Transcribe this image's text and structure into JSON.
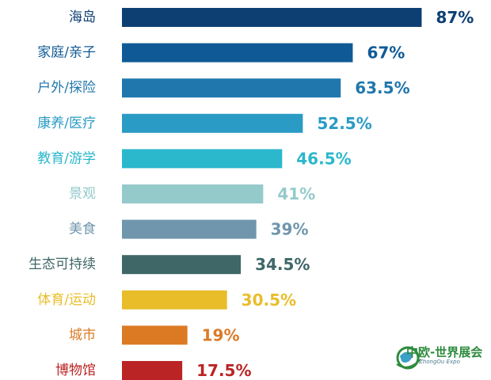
{
  "chart_data": {
    "type": "bar",
    "orientation": "horizontal",
    "title": "",
    "xlabel": "",
    "ylabel": "",
    "xlim": [
      0,
      100
    ],
    "grid": false,
    "legend": "none",
    "categories": [
      "海岛",
      "家庭/亲子",
      "户外/探险",
      "康养/医疗",
      "教育/游学",
      "景观",
      "美食",
      "生态可持续",
      "体育/运动",
      "城市",
      "博物馆"
    ],
    "values": [
      87,
      67,
      63.5,
      52.5,
      46.5,
      41,
      39,
      34.5,
      30.5,
      19,
      17.5
    ],
    "value_labels": [
      "87%",
      "67%",
      "63.5%",
      "52.5%",
      "46.5%",
      "41%",
      "39%",
      "34.5%",
      "30.5%",
      "19%",
      "17.5%"
    ],
    "colors": [
      "#0d3f73",
      "#0f5a96",
      "#1f77ad",
      "#2a9bc4",
      "#2bb7cc",
      "#95cacb",
      "#6f96ad",
      "#3f6768",
      "#e9bd2a",
      "#dc7a24",
      "#bb2424"
    ]
  },
  "logo": {
    "text": "中欧-世界展会",
    "subtext": "ZhongOu Expo"
  }
}
